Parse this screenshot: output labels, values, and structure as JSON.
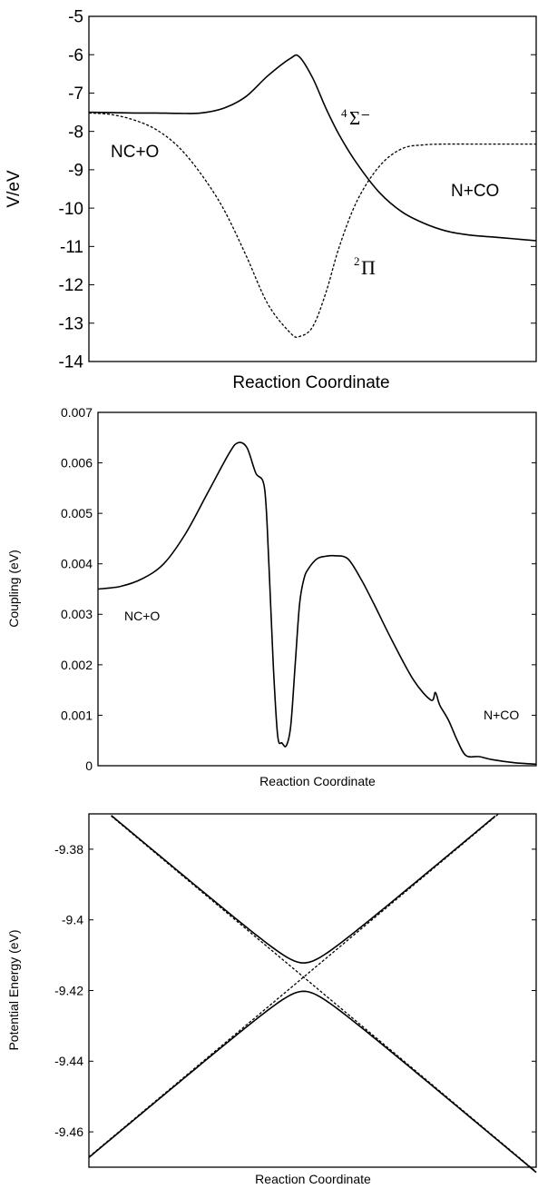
{
  "chart_data": [
    {
      "type": "line",
      "title": "",
      "xlabel": "Reaction Coordinate",
      "ylabel": "V/eV",
      "ylim": [
        -14,
        -5
      ],
      "yticks": [
        "-5",
        "-6",
        "-7",
        "-8",
        "-9",
        "-10",
        "-11",
        "-12",
        "-13",
        "-14"
      ],
      "xlim": [
        0,
        1
      ],
      "grid": false,
      "annotations": {
        "left_channel": "NC+O",
        "right_channel": "N+CO",
        "sigma_sup": "4",
        "sigma_label": "Σ⁻",
        "pi_sup": "2",
        "pi_label": "Π"
      },
      "series": [
        {
          "style": "solid",
          "x": [
            0,
            0.05,
            0.1,
            0.15,
            0.2,
            0.25,
            0.3,
            0.35,
            0.4,
            0.45,
            0.47,
            0.5,
            0.53,
            0.56,
            0.6,
            0.65,
            0.7,
            0.75,
            0.8,
            0.85,
            0.9,
            0.95,
            1.0
          ],
          "y": [
            -7.5,
            -7.51,
            -7.52,
            -7.52,
            -7.53,
            -7.52,
            -7.4,
            -7.1,
            -6.55,
            -6.1,
            -6.05,
            -6.6,
            -7.4,
            -8.1,
            -8.85,
            -9.6,
            -10.1,
            -10.4,
            -10.6,
            -10.7,
            -10.75,
            -10.8,
            -10.85
          ]
        },
        {
          "style": "dashed",
          "x": [
            0,
            0.05,
            0.1,
            0.15,
            0.2,
            0.25,
            0.3,
            0.35,
            0.4,
            0.45,
            0.47,
            0.5,
            0.53,
            0.56,
            0.6,
            0.65,
            0.7,
            0.75,
            0.8,
            0.85,
            0.9,
            0.95,
            1.0
          ],
          "y": [
            -7.52,
            -7.56,
            -7.7,
            -7.95,
            -8.4,
            -9.1,
            -10.0,
            -11.2,
            -12.5,
            -13.25,
            -13.35,
            -13.1,
            -12.2,
            -11.0,
            -9.8,
            -8.9,
            -8.45,
            -8.35,
            -8.33,
            -8.33,
            -8.33,
            -8.33,
            -8.33
          ]
        }
      ]
    },
    {
      "type": "line",
      "title": "",
      "xlabel": "Reaction Coordinate",
      "ylabel": "Coupling (eV)",
      "ylim": [
        0,
        0.007
      ],
      "yticks": [
        "0",
        "0.001",
        "0.002",
        "0.003",
        "0.004",
        "0.005",
        "0.006",
        "0.007"
      ],
      "xlim": [
        0,
        1
      ],
      "grid": false,
      "annotations": {
        "left_channel": "NC+O",
        "right_channel": "N+CO"
      },
      "series": [
        {
          "style": "solid",
          "x": [
            0,
            0.05,
            0.1,
            0.15,
            0.2,
            0.25,
            0.3,
            0.32,
            0.34,
            0.36,
            0.38,
            0.39,
            0.4,
            0.41,
            0.42,
            0.43,
            0.44,
            0.45,
            0.46,
            0.47,
            0.48,
            0.5,
            0.52,
            0.54,
            0.57,
            0.6,
            0.63,
            0.67,
            0.72,
            0.76,
            0.77,
            0.78,
            0.8,
            0.82,
            0.84,
            0.87,
            0.9,
            0.95,
            1.0
          ],
          "y": [
            0.0035,
            0.00355,
            0.0037,
            0.004,
            0.0046,
            0.0054,
            0.0062,
            0.0064,
            0.0063,
            0.0058,
            0.0055,
            0.004,
            0.002,
            0.0006,
            0.00045,
            0.0004,
            0.0008,
            0.002,
            0.0032,
            0.0037,
            0.0039,
            0.0041,
            0.00415,
            0.00416,
            0.0041,
            0.0037,
            0.0032,
            0.0025,
            0.0017,
            0.0013,
            0.00145,
            0.0012,
            0.0009,
            0.0005,
            0.0002,
            0.00018,
            0.00012,
            6e-05,
            3e-05
          ]
        }
      ]
    },
    {
      "type": "line",
      "title": "",
      "xlabel": "Reaction Coordinate",
      "ylabel": "Potential Energy (eV)",
      "ylim": [
        -9.47,
        -9.37
      ],
      "yticks": [
        "-9.38",
        "-9.4",
        "-9.42",
        "-9.44",
        "-9.46"
      ],
      "ytick_values": [
        -9.38,
        -9.4,
        -9.42,
        -9.44,
        -9.46
      ],
      "xlim": [
        0,
        1
      ],
      "grid": false,
      "crossing": {
        "x": 0.48,
        "y": -9.4162,
        "slope": 0.106,
        "gap": 0.004
      }
    }
  ]
}
